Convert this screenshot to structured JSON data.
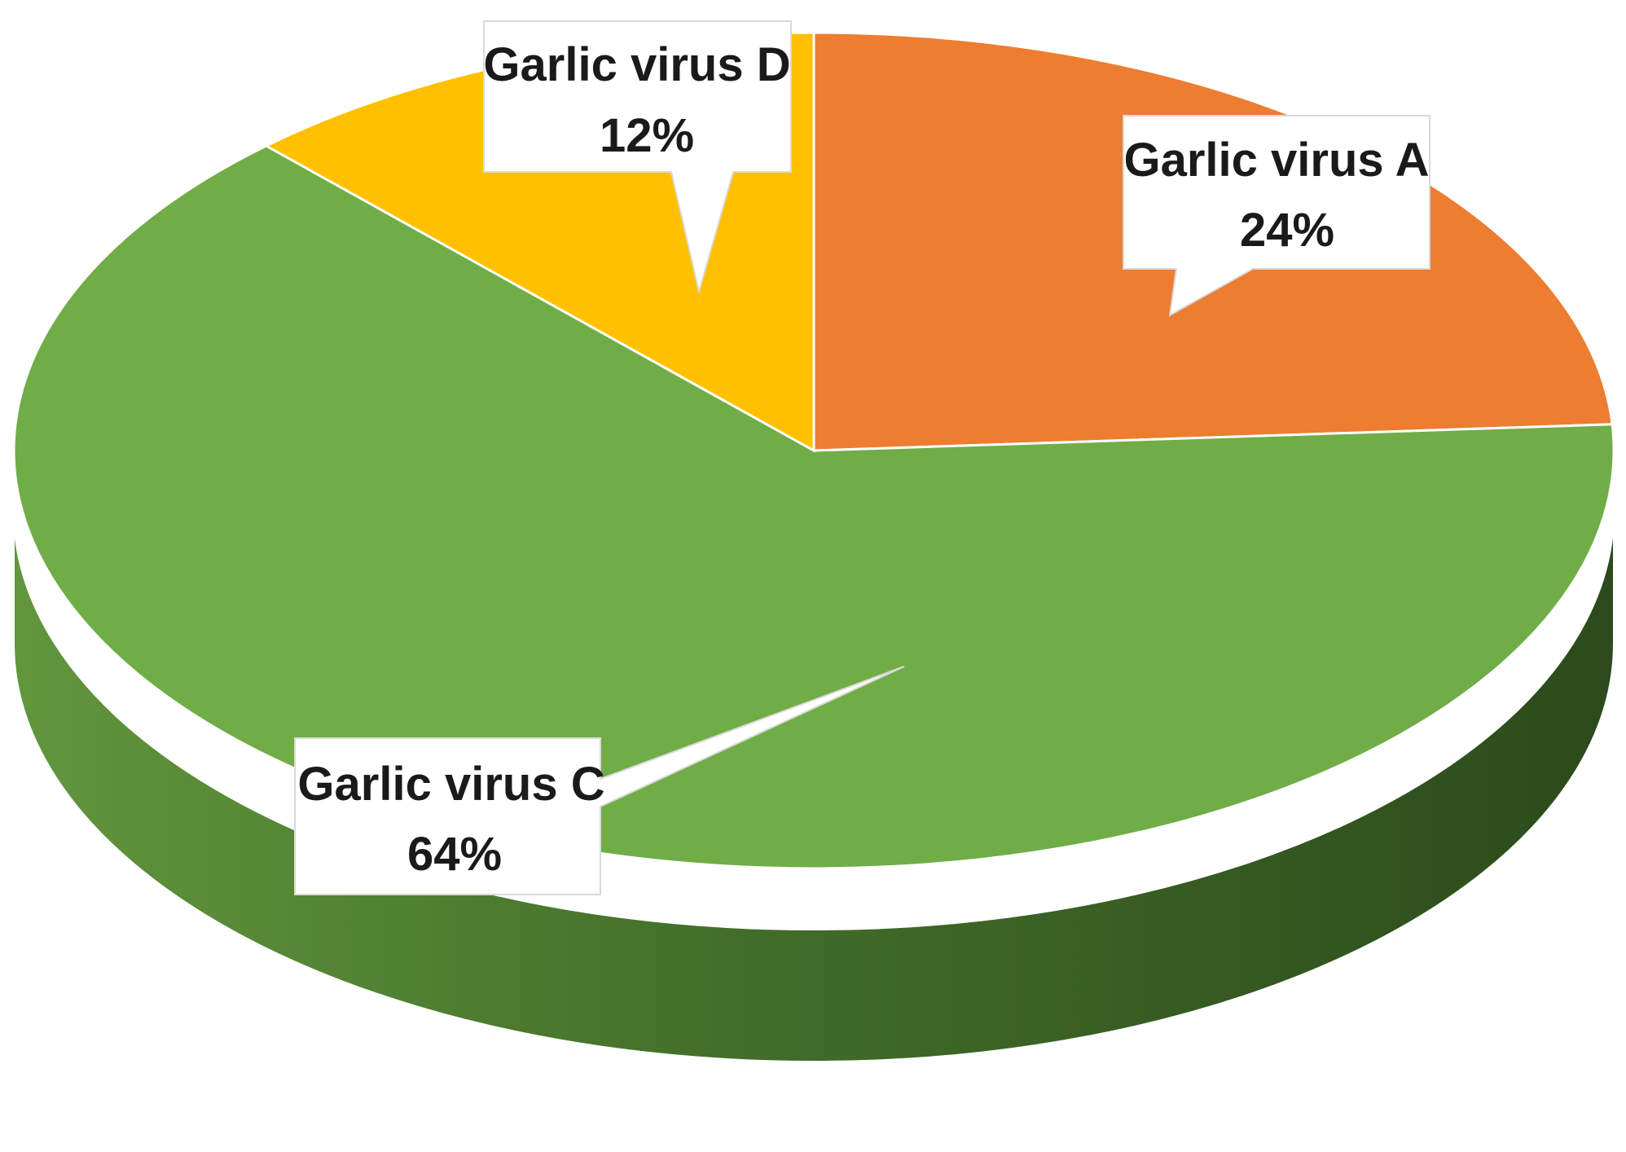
{
  "chart_data": {
    "type": "pie",
    "style": "3d",
    "title": "",
    "legend": "none",
    "slices": [
      {
        "label": "Garlic virus A",
        "value": 24,
        "pct_text": "24%",
        "color": "#ED7D31"
      },
      {
        "label": "Garlic virus C",
        "value": 64,
        "pct_text": "64%",
        "color": "#70AD47"
      },
      {
        "label": "Garlic virus D",
        "value": 12,
        "pct_text": "12%",
        "color": "#FFC000"
      }
    ]
  }
}
